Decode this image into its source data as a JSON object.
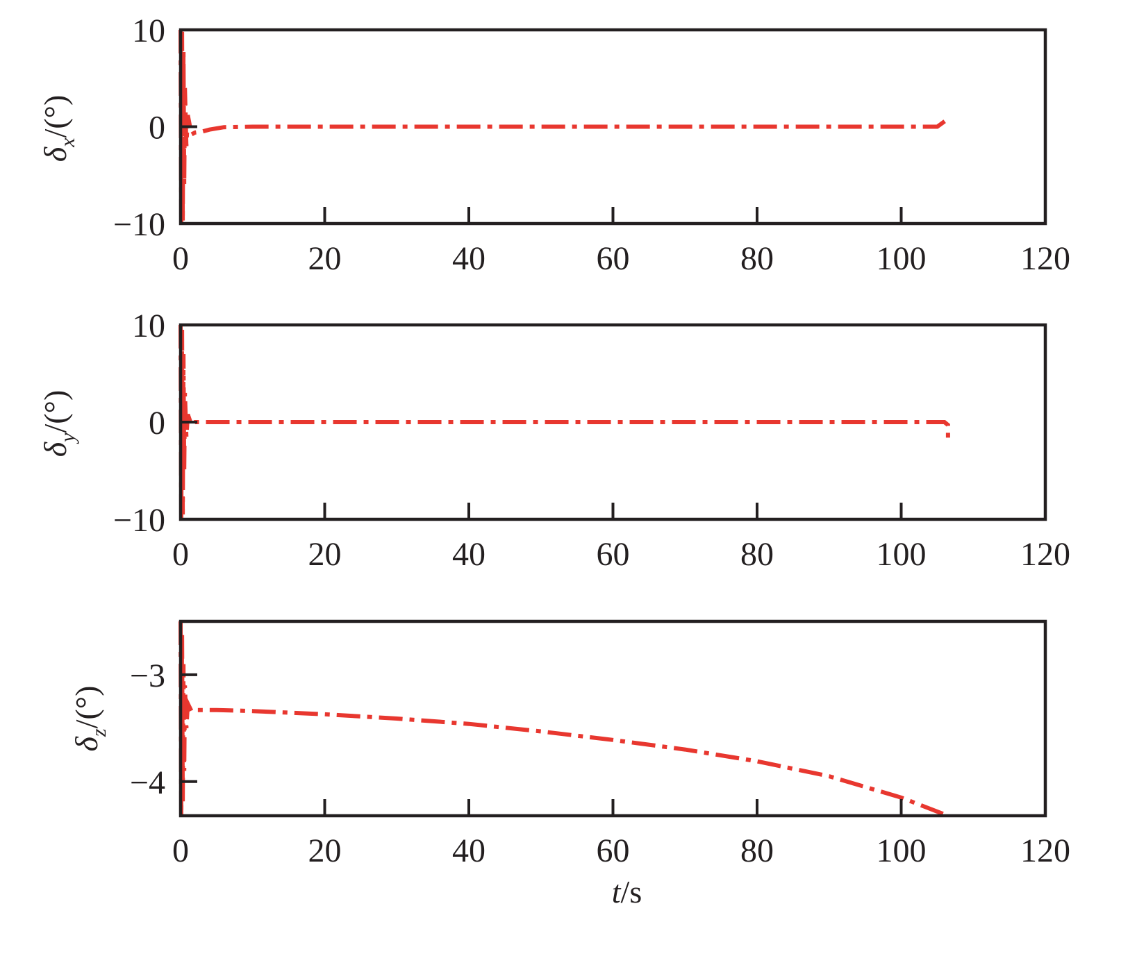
{
  "chart_data": [
    {
      "type": "line",
      "title": "",
      "xlabel": "",
      "ylabel": {
        "symbol": "δ",
        "sub": "x",
        "unit": "/(°)"
      },
      "xlim": [
        0,
        120
      ],
      "ylim": [
        -10,
        10
      ],
      "xticks": [
        0,
        20,
        40,
        60,
        80,
        100,
        120
      ],
      "xtick_labels": [
        "0",
        "20",
        "40",
        "60",
        "80",
        "100",
        "120"
      ],
      "yticks": [
        -10,
        0,
        10
      ],
      "ytick_labels": [
        "−10",
        "0",
        "10"
      ],
      "grid": false,
      "legend": null,
      "series": [
        {
          "color": "#e8372f",
          "x": [
            0,
            0.1,
            0.2,
            0.3,
            0.4,
            0.5,
            0.6,
            0.8,
            1.0,
            1.5,
            2,
            3,
            4,
            6,
            10,
            20,
            40,
            60,
            80,
            100,
            105,
            106.5
          ],
          "y": [
            10,
            -10,
            9.8,
            -9.8,
            8,
            -6,
            4,
            -2,
            1.2,
            -0.8,
            -0.6,
            -0.5,
            -0.3,
            -0.05,
            0,
            0,
            0,
            0,
            0,
            0,
            0,
            0.8
          ]
        }
      ]
    },
    {
      "type": "line",
      "title": "",
      "xlabel": "",
      "ylabel": {
        "symbol": "δ",
        "sub": "y",
        "unit": "/(°)"
      },
      "xlim": [
        0,
        120
      ],
      "ylim": [
        -10,
        10
      ],
      "xticks": [
        0,
        20,
        40,
        60,
        80,
        100,
        120
      ],
      "xtick_labels": [
        "0",
        "20",
        "40",
        "60",
        "80",
        "100",
        "120"
      ],
      "yticks": [
        -10,
        0,
        10
      ],
      "ytick_labels": [
        "−10",
        "0",
        "10"
      ],
      "grid": false,
      "legend": null,
      "series": [
        {
          "color": "#e8372f",
          "x": [
            0,
            0.1,
            0.2,
            0.3,
            0.4,
            0.5,
            0.6,
            0.8,
            1.0,
            1.5,
            2,
            3,
            10,
            40,
            80,
            100,
            105,
            106,
            106.5,
            106.5
          ],
          "y": [
            10,
            -10,
            9.5,
            -9.5,
            7,
            -5,
            3,
            -1.5,
            0.8,
            -0.3,
            0,
            0,
            0,
            0,
            0,
            0,
            0,
            0,
            -0.3,
            -2.2
          ]
        }
      ]
    },
    {
      "type": "line",
      "title": "",
      "xlabel": "t/s",
      "ylabel": {
        "symbol": "δ",
        "sub": "z",
        "unit": "/(°)"
      },
      "xlim": [
        0,
        120
      ],
      "ylim": [
        -4.32,
        -2.5
      ],
      "xticks": [
        0,
        20,
        40,
        60,
        80,
        100,
        120
      ],
      "xtick_labels": [
        "0",
        "20",
        "40",
        "60",
        "80",
        "100",
        "120"
      ],
      "yticks": [
        -3,
        -4
      ],
      "ytick_labels": [
        "−3",
        "−4"
      ],
      "grid": false,
      "legend": null,
      "series": [
        {
          "color": "#e8372f",
          "x": [
            0,
            0.1,
            0.2,
            0.3,
            0.4,
            0.5,
            0.6,
            0.8,
            1.0,
            1.5,
            2,
            5,
            10,
            20,
            30,
            40,
            50,
            60,
            70,
            80,
            90,
            100,
            106.5
          ],
          "y": [
            -2.5,
            -4.32,
            -2.6,
            -4.2,
            -2.9,
            -3.9,
            -3.1,
            -3.5,
            -3.27,
            -3.34,
            -3.33,
            -3.33,
            -3.34,
            -3.37,
            -3.41,
            -3.46,
            -3.53,
            -3.61,
            -3.7,
            -3.81,
            -3.95,
            -4.15,
            -4.32
          ]
        }
      ]
    }
  ]
}
